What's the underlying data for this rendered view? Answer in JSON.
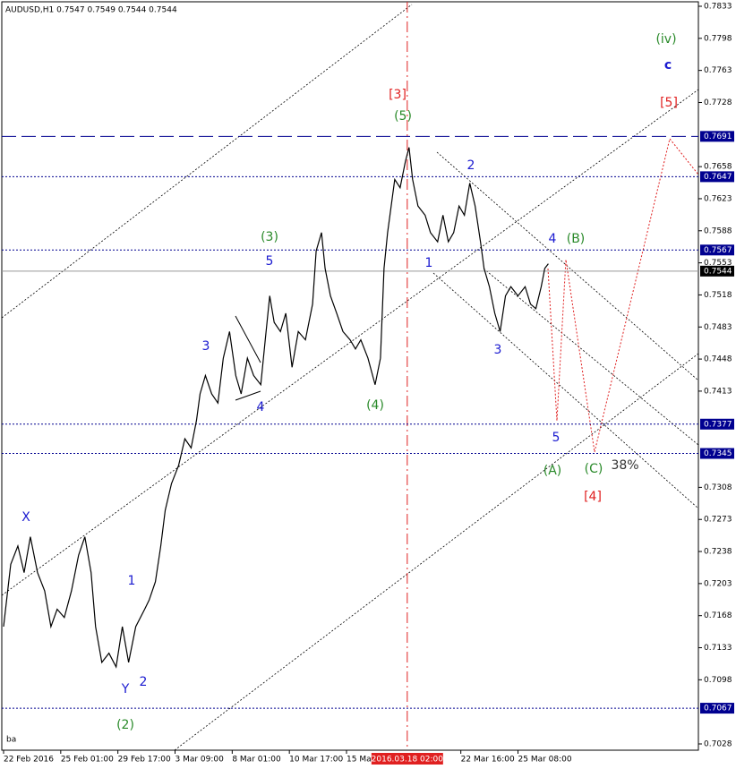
{
  "chart_data": {
    "type": "line",
    "title": "AUDUSD,H1  0.7547 0.7549 0.7544 0.7544",
    "footer": "ba",
    "x": [
      2,
      10,
      18,
      25,
      32,
      40,
      48,
      55,
      62,
      70,
      78,
      86,
      93,
      100,
      105,
      112,
      120,
      128,
      135,
      142,
      150,
      160,
      165,
      172,
      178,
      183,
      190,
      198,
      205,
      212,
      218,
      222,
      228,
      235,
      242,
      248,
      255,
      262,
      268,
      275,
      282,
      290,
      295,
      300,
      305,
      312,
      318,
      325,
      332,
      340,
      348,
      352,
      358,
      362,
      368,
      375,
      382,
      390,
      396,
      402,
      410,
      418,
      424,
      428,
      432,
      436,
      440,
      446,
      452,
      456,
      460,
      466,
      474,
      480,
      488,
      494,
      500,
      506,
      512,
      518,
      524,
      530,
      536,
      540,
      546,
      552,
      558,
      564,
      570,
      578,
      586,
      592,
      598,
      604,
      608,
      612
    ],
    "series": [
      {
        "name": "AUDUSD",
        "color": "#000000",
        "values": [
          0.7156,
          0.7224,
          0.7244,
          0.7215,
          0.7254,
          0.7215,
          0.7195,
          0.7156,
          0.7175,
          0.7166,
          0.7195,
          0.7234,
          0.7254,
          0.7215,
          0.7156,
          0.7117,
          0.7127,
          0.7112,
          0.7156,
          0.7117,
          0.7156,
          0.7175,
          0.7185,
          0.7205,
          0.7244,
          0.7283,
          0.7312,
          0.7332,
          0.7361,
          0.7351,
          0.7381,
          0.741,
          0.743,
          0.741,
          0.74,
          0.7449,
          0.7478,
          0.743,
          0.741,
          0.7449,
          0.743,
          0.742,
          0.7469,
          0.7517,
          0.7488,
          0.7478,
          0.7498,
          0.7439,
          0.7478,
          0.7469,
          0.7508,
          0.7566,
          0.7586,
          0.7547,
          0.7517,
          0.7498,
          0.7478,
          0.7469,
          0.7459,
          0.7469,
          0.7449,
          0.742,
          0.7449,
          0.7547,
          0.7586,
          0.7615,
          0.7644,
          0.7635,
          0.7664,
          0.7679,
          0.7644,
          0.7615,
          0.7605,
          0.7586,
          0.7576,
          0.7605,
          0.7576,
          0.7586,
          0.7615,
          0.7605,
          0.764,
          0.7615,
          0.7576,
          0.7547,
          0.7527,
          0.7498,
          0.7478,
          0.7517,
          0.7527,
          0.7517,
          0.7527,
          0.7508,
          0.7503,
          0.7527,
          0.7547,
          0.7552
        ]
      }
    ],
    "xlim": [
      0,
      780
    ],
    "ylim": [
      0.7028,
      0.7833
    ],
    "xticks": [
      {
        "value": 2,
        "label": "22 Feb 2016"
      },
      {
        "value": 66,
        "label": "25 Feb 01:00"
      },
      {
        "value": 130,
        "label": "29 Feb 17:00"
      },
      {
        "value": 194,
        "label": "3 Mar 09:00"
      },
      {
        "value": 258,
        "label": "8 Mar 01:00"
      },
      {
        "value": 322,
        "label": "10 Mar 17:00"
      },
      {
        "value": 386,
        "label": "15 Ma"
      },
      {
        "value": 514,
        "label": "22 Mar 16:00"
      },
      {
        "value": 578,
        "label": "25 Mar 08:00"
      }
    ],
    "cursor": {
      "value": 454,
      "label": "2016.03.18 02:00",
      "color": "#e02020"
    },
    "yticks": [
      0.7833,
      0.7798,
      0.7763,
      0.7728,
      0.7658,
      0.7623,
      0.7588,
      0.7553,
      0.7518,
      0.7483,
      0.7448,
      0.7413,
      0.7308,
      0.7273,
      0.7238,
      0.7203,
      0.7168,
      0.7133,
      0.7098,
      0.7028
    ],
    "levels": [
      {
        "value": 0.7691,
        "style": "dash"
      },
      {
        "value": 0.7647,
        "style": "dot"
      },
      {
        "value": 0.7567,
        "style": "dot"
      },
      {
        "value": 0.7377,
        "style": "dot"
      },
      {
        "value": 0.7345,
        "style": "dot"
      },
      {
        "value": 0.7067,
        "style": "dot"
      }
    ],
    "level_color": "#000090",
    "price": 0.7544,
    "annotations": [
      {
        "text": "(iv)",
        "color": "#2a8a2a"
      },
      {
        "text": "c",
        "color": "#1a1ad0"
      },
      {
        "text": "[5]",
        "color": "#e02020"
      },
      {
        "text": "[3]",
        "color": "#e02020"
      },
      {
        "text": "(5)",
        "color": "#2a8a2a"
      },
      {
        "text": "2",
        "color": "#1a1ad0"
      },
      {
        "text": "4",
        "color": "#1a1ad0"
      },
      {
        "text": "(B)",
        "color": "#2a8a2a"
      },
      {
        "text": "(3)",
        "color": "#2a8a2a"
      },
      {
        "text": "5",
        "color": "#1a1ad0"
      },
      {
        "text": "1",
        "color": "#1a1ad0"
      },
      {
        "text": "3",
        "color": "#1a1ad0"
      },
      {
        "text": "3",
        "color": "#1a1ad0"
      },
      {
        "text": "4",
        "color": "#1a1ad0"
      },
      {
        "text": "(4)",
        "color": "#2a8a2a"
      },
      {
        "text": "5",
        "color": "#1a1ad0"
      },
      {
        "text": "(A)",
        "color": "#2a8a2a"
      },
      {
        "text": "(C)",
        "color": "#2a8a2a"
      },
      {
        "text": "38%",
        "color": "#333333"
      },
      {
        "text": "[4]",
        "color": "#e02020"
      },
      {
        "text": "X",
        "color": "#1a1ad0"
      },
      {
        "text": "1",
        "color": "#1a1ad0"
      },
      {
        "text": "Y",
        "color": "#1a1ad0"
      },
      {
        "text": "2",
        "color": "#1a1ad0"
      },
      {
        "text": "(2)",
        "color": "#2a8a2a"
      }
    ]
  }
}
